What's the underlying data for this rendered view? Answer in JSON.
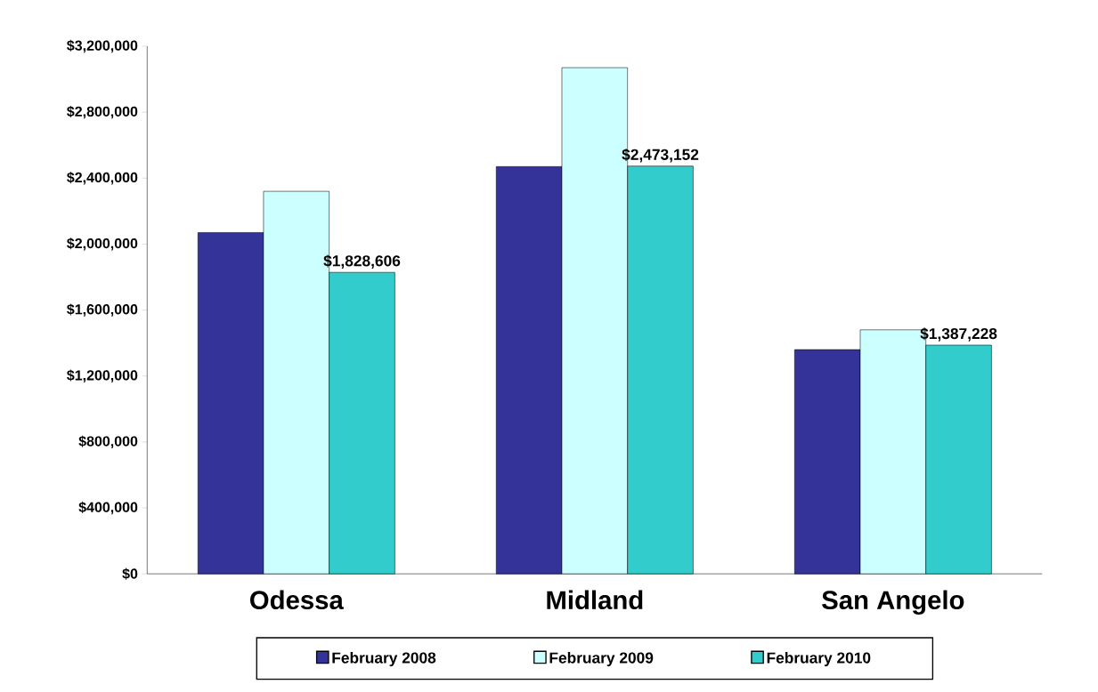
{
  "chart_data": {
    "type": "bar",
    "categories": [
      "Odessa",
      "Midland",
      "San Angelo"
    ],
    "series": [
      {
        "name": "February 2008",
        "color": "#333399",
        "values": [
          2070000,
          2470000,
          1360000
        ]
      },
      {
        "name": "February 2009",
        "color": "#ccffff",
        "values": [
          2320000,
          3070000,
          1480000
        ]
      },
      {
        "name": "February 2010",
        "color": "#33cccc",
        "values": [
          1828606,
          2473152,
          1387228
        ],
        "value_labels": [
          "$1,828,606",
          "$2,473,152",
          "$1,387,228"
        ]
      }
    ],
    "ylim": [
      0,
      3200000
    ],
    "yticks": [
      {
        "value": 0,
        "label": "$0"
      },
      {
        "value": 400000,
        "label": "$400,000"
      },
      {
        "value": 800000,
        "label": "$800,000"
      },
      {
        "value": 1200000,
        "label": "$1,200,000"
      },
      {
        "value": 1600000,
        "label": "$1,600,000"
      },
      {
        "value": 2000000,
        "label": "$2,000,000"
      },
      {
        "value": 2400000,
        "label": "$2,400,000"
      },
      {
        "value": 2800000,
        "label": "$2,800,000"
      },
      {
        "value": 3200000,
        "label": "$3,200,000"
      }
    ],
    "grid": false,
    "legend": "bottom"
  }
}
